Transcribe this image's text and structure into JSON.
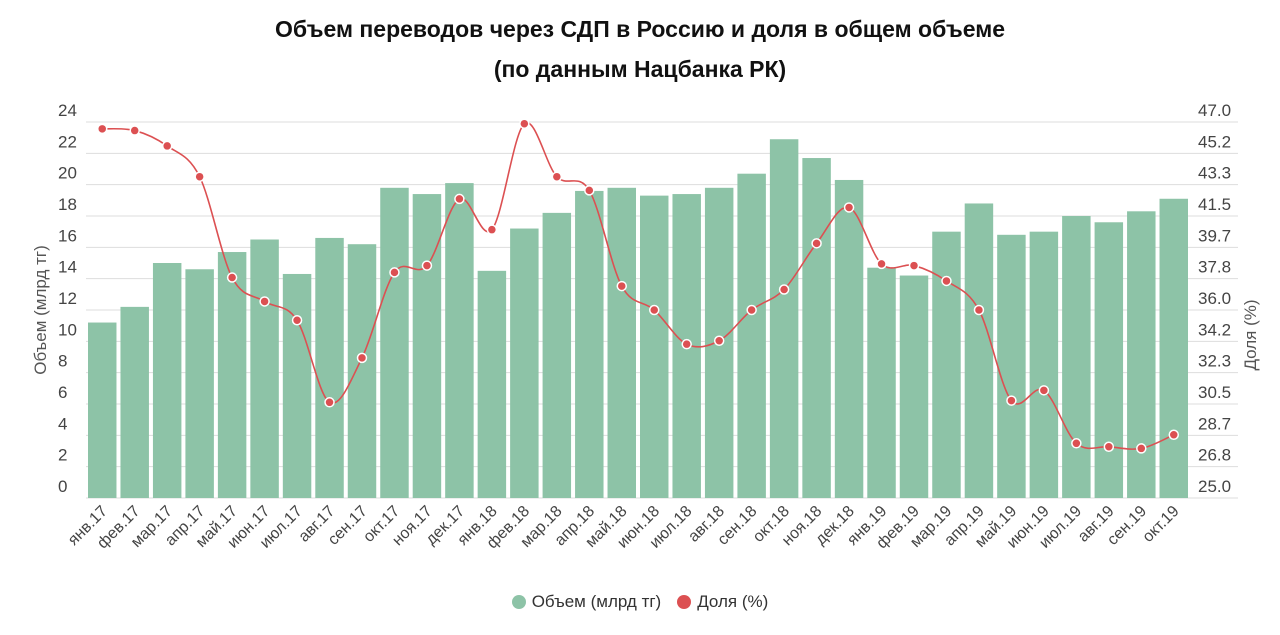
{
  "chart_data": {
    "type": "bar+line",
    "title": "Объем переводов через СДП в Россию и доля в общем объеме",
    "subtitle": "(по данным Нацбанка РК)",
    "categories": [
      "янв.17",
      "фев.17",
      "мар.17",
      "апр.17",
      "май.17",
      "июн.17",
      "июл.17",
      "авг.17",
      "сен.17",
      "окт.17",
      "ноя.17",
      "дек.17",
      "янв.18",
      "фев.18",
      "мар.18",
      "апр.18",
      "май.18",
      "июн.18",
      "июл.18",
      "авг.18",
      "сен.18",
      "окт.18",
      "ноя.18",
      "дек.18",
      "янв.19",
      "фев.19",
      "мар.19",
      "апр.19",
      "май.19",
      "июн.19",
      "июл.19",
      "авг.19",
      "сен.19",
      "окт.19"
    ],
    "series": [
      {
        "name": "Объем (млрд тг)",
        "type": "bar",
        "axis": "left",
        "color": "#8dc3a7",
        "values": [
          11.2,
          12.2,
          15.0,
          14.6,
          15.7,
          16.5,
          14.3,
          16.6,
          16.2,
          19.8,
          19.4,
          20.1,
          14.5,
          17.2,
          18.2,
          19.6,
          19.8,
          19.3,
          19.4,
          19.8,
          20.7,
          22.9,
          21.7,
          20.3,
          14.7,
          14.2,
          17.0,
          18.8,
          16.8,
          17.0,
          18.0,
          17.6,
          18.3,
          19.1
        ]
      },
      {
        "name": "Доля (%)",
        "type": "line",
        "axis": "right",
        "color": "#dc5052",
        "values": [
          46.6,
          46.5,
          45.6,
          43.8,
          37.9,
          36.5,
          35.4,
          30.6,
          33.2,
          38.2,
          38.6,
          42.5,
          40.7,
          46.9,
          43.8,
          43.0,
          37.4,
          36.0,
          34.0,
          34.2,
          36.0,
          37.2,
          39.9,
          42.0,
          38.7,
          38.6,
          37.7,
          36.0,
          30.7,
          31.3,
          28.2,
          28.0,
          27.9,
          28.7
        ]
      }
    ],
    "ylabel": "Объем (млрд тг)",
    "ylim": [
      0,
      24
    ],
    "yticks": [
      "0",
      "2",
      "4",
      "6",
      "8",
      "10",
      "12",
      "14",
      "16",
      "18",
      "20",
      "22",
      "24"
    ],
    "y2label": "Доля (%)",
    "y2lim": [
      25.0,
      47.0
    ],
    "y2ticks": [
      "25.0",
      "26.8",
      "28.7",
      "30.5",
      "32.3",
      "34.2",
      "36.0",
      "37.8",
      "39.7",
      "41.5",
      "43.3",
      "45.2",
      "47.0"
    ],
    "grid": true,
    "legend_position": "bottom"
  }
}
